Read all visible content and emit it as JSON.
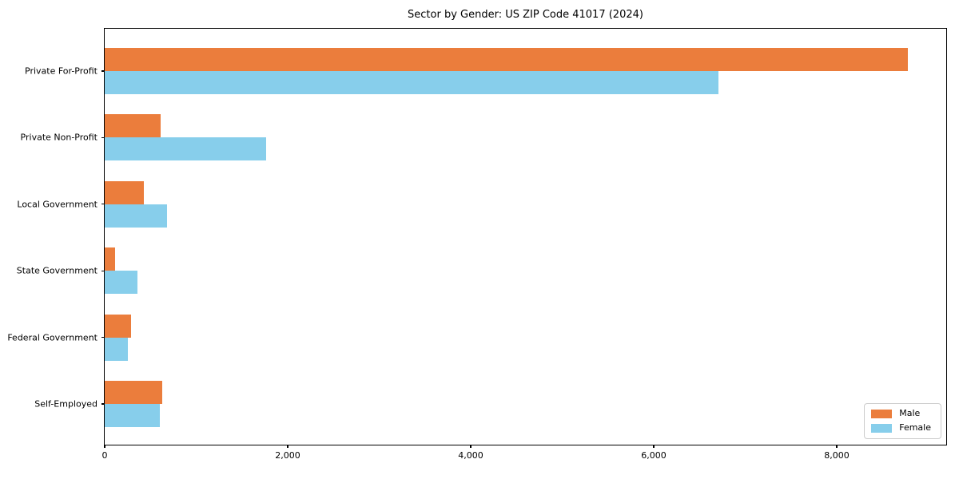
{
  "chart_data": {
    "type": "bar",
    "orientation": "horizontal",
    "title": "Sector by Gender: US ZIP Code 41017 (2024)",
    "categories": [
      "Private For-Profit",
      "Private Non-Profit",
      "Local Government",
      "State Government",
      "Federal Government",
      "Self-Employed"
    ],
    "series": [
      {
        "name": "Male",
        "color": "#EB7D3C",
        "values": [
          8780,
          610,
          430,
          115,
          290,
          630
        ]
      },
      {
        "name": "Female",
        "color": "#87CEEB",
        "values": [
          6710,
          1765,
          680,
          360,
          250,
          605
        ]
      }
    ],
    "xlim": [
      0,
      9214
    ],
    "xticks": [
      {
        "value": 0,
        "label": "0"
      },
      {
        "value": 2000,
        "label": "2,000"
      },
      {
        "value": 4000,
        "label": "4,000"
      },
      {
        "value": 6000,
        "label": "6,000"
      },
      {
        "value": 8000,
        "label": "8,000"
      }
    ],
    "ylabel": "",
    "xlabel": "",
    "grid": false,
    "legend_position": "lower right"
  }
}
